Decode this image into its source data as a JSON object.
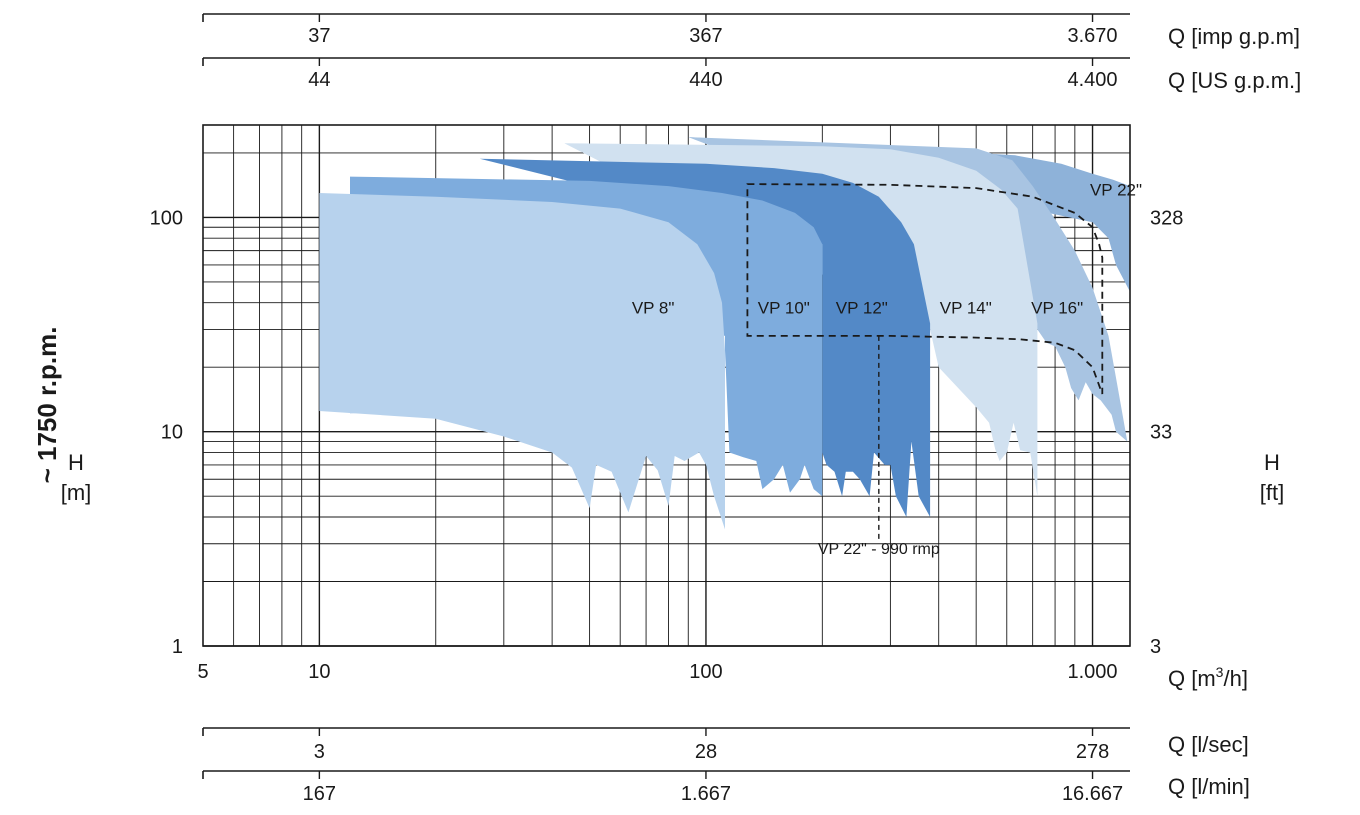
{
  "chart_data": {
    "type": "area",
    "title": "",
    "speed_label": "~ 1750 r.p.m.",
    "x_axis": {
      "label_prefix": "Q [m",
      "label_sup": "3",
      "label_suffix": "/h]",
      "scale": "log",
      "range": [
        5,
        1250
      ],
      "ticks": [
        {
          "value": 5,
          "label": "5"
        },
        {
          "value": 10,
          "label": "10"
        },
        {
          "value": 100,
          "label": "100"
        },
        {
          "value": 1000,
          "label": "1.000"
        }
      ]
    },
    "y_axis": {
      "label_name": "H",
      "label_unit": "[m]",
      "scale": "log",
      "range": [
        1,
        270
      ],
      "ticks": [
        {
          "value": 1,
          "label": "1"
        },
        {
          "value": 10,
          "label": "10"
        },
        {
          "value": 100,
          "label": "100"
        }
      ]
    },
    "y_axis_right": {
      "label_name": "H",
      "label_unit": "[ft]",
      "ticks": [
        {
          "value": 1,
          "label": "3"
        },
        {
          "value": 10,
          "label": "33"
        },
        {
          "value": 100,
          "label": "328"
        }
      ]
    },
    "secondary_x_axes": [
      {
        "label": "Q [imp g.p.m]",
        "position": "top-1",
        "ticks": [
          {
            "value": 10,
            "label": "37"
          },
          {
            "value": 100,
            "label": "367"
          },
          {
            "value": 1000,
            "label": "3.670"
          }
        ]
      },
      {
        "label": "Q [US g.p.m.]",
        "position": "top-2",
        "ticks": [
          {
            "value": 10,
            "label": "44"
          },
          {
            "value": 100,
            "label": "440"
          },
          {
            "value": 1000,
            "label": "4.400"
          }
        ]
      },
      {
        "label": "Q [l/sec]",
        "position": "bottom-1",
        "ticks": [
          {
            "value": 10,
            "label": "3"
          },
          {
            "value": 100,
            "label": "28"
          },
          {
            "value": 1000,
            "label": "278"
          }
        ]
      },
      {
        "label": "Q [l/min]",
        "position": "bottom-2",
        "ticks": [
          {
            "value": 10,
            "label": "167"
          },
          {
            "value": 100,
            "label": "1.667"
          },
          {
            "value": 1000,
            "label": "16.667"
          }
        ]
      }
    ],
    "series": [
      {
        "name": "VP 22\"",
        "color": "#8eb2d9",
        "label_at": [
          1150,
          135
        ],
        "polygon": [
          [
            90,
            237
          ],
          [
            630,
            195
          ],
          [
            830,
            178
          ],
          [
            1000,
            160
          ],
          [
            1130,
            150
          ],
          [
            1250,
            140
          ],
          [
            1250,
            45
          ],
          [
            1150,
            60
          ],
          [
            1100,
            80
          ],
          [
            1000,
            95
          ]
        ]
      },
      {
        "name": "VP 16\"",
        "color": "#a8c4e2",
        "label_at": [
          810,
          38
        ],
        "polygon": [
          [
            90,
            237
          ],
          [
            500,
            210
          ],
          [
            620,
            185
          ],
          [
            700,
            140
          ],
          [
            800,
            98
          ],
          [
            900,
            70
          ],
          [
            1000,
            47
          ],
          [
            1100,
            28
          ],
          [
            1170,
            15
          ],
          [
            1230,
            9
          ],
          [
            1150,
            10
          ],
          [
            1120,
            12
          ],
          [
            1050,
            14
          ],
          [
            1000,
            15
          ],
          [
            960,
            17
          ],
          [
            920,
            14
          ],
          [
            880,
            16
          ],
          [
            850,
            20
          ],
          [
            800,
            25
          ],
          [
            760,
            26
          ],
          [
            720,
            30
          ],
          [
            710,
            32
          ],
          [
            700,
            40
          ],
          [
            650,
            60
          ]
        ]
      },
      {
        "name": "VP 14\"",
        "color": "#d1e1f0",
        "label_at": [
          470,
          38
        ],
        "polygon": [
          [
            43,
            222
          ],
          [
            200,
            215
          ],
          [
            300,
            208
          ],
          [
            400,
            190
          ],
          [
            500,
            165
          ],
          [
            580,
            135
          ],
          [
            640,
            110
          ],
          [
            720,
            32
          ],
          [
            720,
            5
          ],
          [
            690,
            8
          ],
          [
            650,
            8.2
          ],
          [
            625,
            11
          ],
          [
            600,
            8
          ],
          [
            575,
            7.3
          ],
          [
            560,
            8.3
          ],
          [
            540,
            11
          ],
          [
            500,
            13
          ],
          [
            400,
            20
          ],
          [
            380,
            30
          ]
        ]
      },
      {
        "name": "VP 12\"",
        "color": "#5389c7",
        "label_at": [
          253,
          38
        ],
        "polygon": [
          [
            26,
            188
          ],
          [
            100,
            178
          ],
          [
            150,
            170
          ],
          [
            200,
            160
          ],
          [
            240,
            145
          ],
          [
            280,
            125
          ],
          [
            320,
            95
          ],
          [
            345,
            75
          ],
          [
            380,
            32
          ],
          [
            380,
            4
          ],
          [
            355,
            5
          ],
          [
            340,
            9
          ],
          [
            330,
            4
          ],
          [
            310,
            5
          ],
          [
            300,
            7
          ],
          [
            290,
            7
          ],
          [
            272,
            8
          ],
          [
            265,
            5
          ],
          [
            250,
            6
          ],
          [
            240,
            6.5
          ],
          [
            230,
            6.5
          ],
          [
            225,
            5
          ],
          [
            215,
            6.5
          ],
          [
            205,
            7
          ],
          [
            200,
            8
          ],
          [
            200,
            75
          ]
        ]
      },
      {
        "name": "VP 10\"",
        "color": "#7eacdd",
        "label_at": [
          159,
          38
        ],
        "polygon": [
          [
            12,
            155
          ],
          [
            50,
            148
          ],
          [
            80,
            140
          ],
          [
            110,
            130
          ],
          [
            140,
            120
          ],
          [
            170,
            105
          ],
          [
            190,
            90
          ],
          [
            200,
            75
          ],
          [
            200,
            5
          ],
          [
            190,
            5.4
          ],
          [
            180,
            7
          ],
          [
            175,
            6
          ],
          [
            165,
            5.2
          ],
          [
            158,
            7
          ],
          [
            150,
            6
          ],
          [
            140,
            5.4
          ],
          [
            135,
            7.3
          ],
          [
            125,
            7.6
          ],
          [
            115,
            8
          ],
          [
            112,
            24
          ],
          [
            112,
            28
          ],
          [
            90,
            30
          ],
          [
            60,
            20
          ],
          [
            30,
            13
          ],
          [
            12,
            12.2
          ]
        ]
      },
      {
        "name": "VP 8\"",
        "color": "#b7d2ed",
        "label_at": [
          73,
          38
        ],
        "polygon": [
          [
            10,
            130
          ],
          [
            20,
            125
          ],
          [
            40,
            118
          ],
          [
            60,
            110
          ],
          [
            80,
            95
          ],
          [
            95,
            75
          ],
          [
            105,
            55
          ],
          [
            110,
            40
          ],
          [
            112,
            24
          ],
          [
            112,
            3.5
          ],
          [
            105,
            5
          ],
          [
            100,
            7
          ],
          [
            96,
            8
          ],
          [
            88,
            7.3
          ],
          [
            83,
            7.7
          ],
          [
            80,
            4.5
          ],
          [
            75,
            6.6
          ],
          [
            70,
            7.7
          ],
          [
            63,
            4.2
          ],
          [
            57,
            6.5
          ],
          [
            52,
            7
          ],
          [
            50,
            4.4
          ],
          [
            45,
            6.8
          ],
          [
            40,
            8
          ],
          [
            30,
            9.5
          ],
          [
            20,
            11.5
          ],
          [
            10,
            12.5
          ]
        ]
      }
    ],
    "boundary": {
      "note_series": "VP 22\" - 990 rmp",
      "style": "dashed",
      "polygon": [
        [
          128,
          143
        ],
        [
          300,
          142
        ],
        [
          500,
          137
        ],
        [
          700,
          125
        ],
        [
          900,
          105
        ],
        [
          1000,
          90
        ],
        [
          1040,
          75
        ],
        [
          1060,
          65
        ],
        [
          1060,
          15
        ],
        [
          1000,
          20
        ],
        [
          900,
          24
        ],
        [
          800,
          26
        ],
        [
          650,
          27
        ],
        [
          500,
          27.5
        ],
        [
          300,
          28
        ],
        [
          128,
          28
        ]
      ],
      "note_line": [
        [
          280,
          28
        ],
        [
          280,
          3.1
        ]
      ],
      "note_at": [
        280,
        2.8
      ]
    }
  }
}
